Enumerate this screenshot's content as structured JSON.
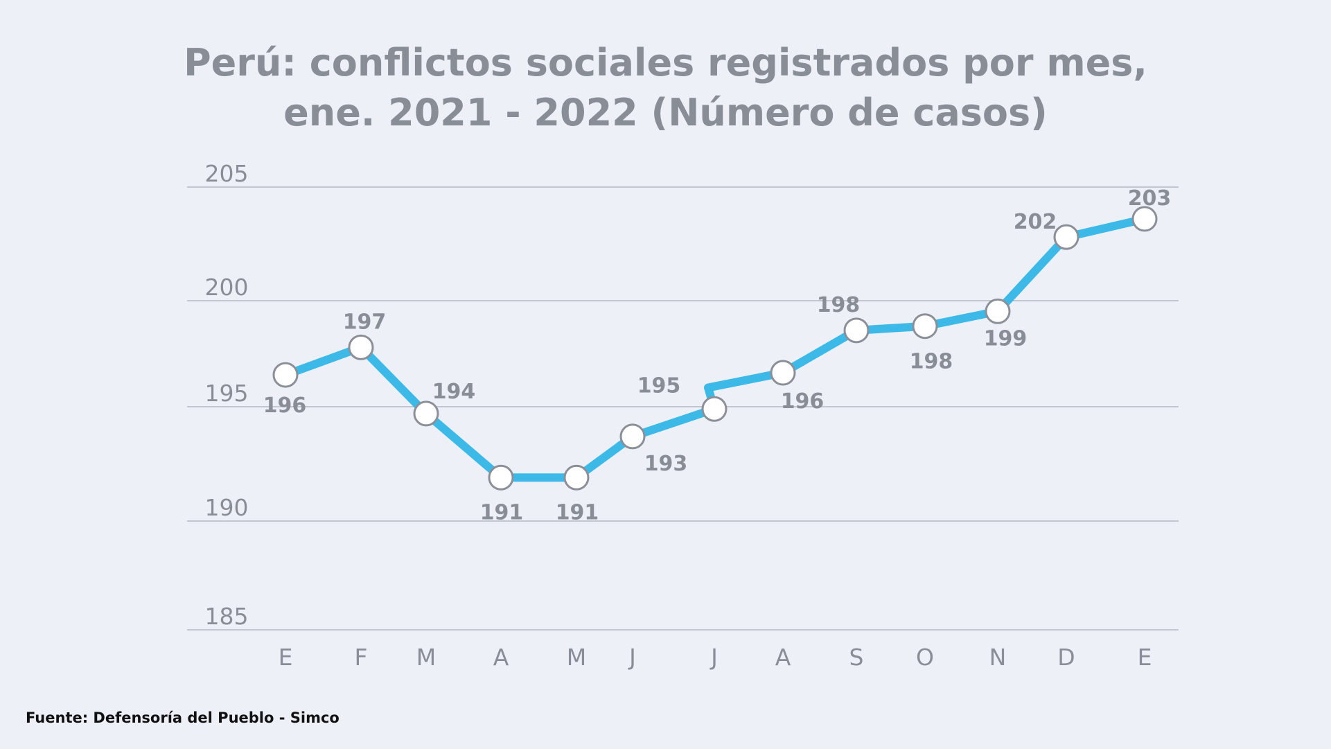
{
  "title_line1": "Perú: conflictos sociales registrados por mes,",
  "title_line2": "ene. 2021 - 2022 (Número de casos)",
  "source": "Fuente: Defensoría del Pueblo - Simco",
  "colors": {
    "background": "#edf1f7",
    "line": "#3db9e8",
    "marker_fill": "#ffffff",
    "marker_stroke": "#8b8f97",
    "text": "#898d96",
    "grid": "#a9adb5"
  },
  "chart_data": {
    "type": "line",
    "title": "Perú: conflictos sociales registrados por mes, ene. 2021 - 2022 (Número de casos)",
    "categories": [
      "E",
      "F",
      "M",
      "A",
      "M",
      "J",
      "J",
      "A",
      "S",
      "O",
      "N",
      "D",
      "E"
    ],
    "series": [
      {
        "values": [
          196,
          197,
          194,
          191,
          191,
          193,
          195,
          196,
          198,
          198,
          199,
          202,
          203
        ],
        "labels": [
          "196",
          "197",
          "194",
          "191",
          "191",
          "193",
          "195",
          "196",
          "198",
          "198",
          "199",
          "202",
          "203"
        ]
      }
    ],
    "plotted_values": [
      196.5,
      197.8,
      194.7,
      191.9,
      191.9,
      193.7,
      194.9,
      196.6,
      198.6,
      198.8,
      199.5,
      202.8,
      203.6
    ],
    "extra_vertex_value": 195.9,
    "ylim": [
      185,
      205
    ],
    "yticks": [
      205,
      200,
      195,
      190,
      185
    ],
    "grid": true,
    "legend": "none"
  }
}
